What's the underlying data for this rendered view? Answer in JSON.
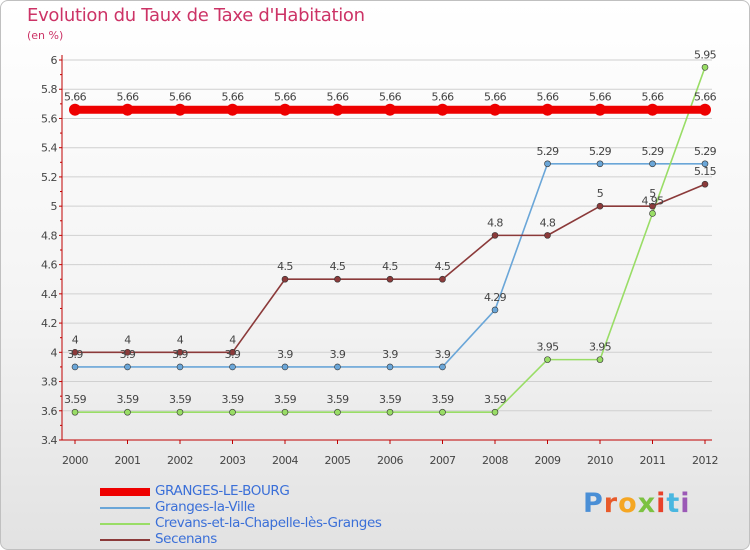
{
  "header": {
    "title": "Evolution du Taux de Taxe d'Habitation",
    "unit": "(en %)"
  },
  "logo": {
    "text": "Proxiti",
    "letter_colors": [
      "#4a8fd6",
      "#e85a2a",
      "#f5a623",
      "#7cc242",
      "#e8412a",
      "#4ab7e0",
      "#9b59b6"
    ]
  },
  "chart_data": {
    "type": "line",
    "title": "Evolution du Taux de Taxe d'Habitation",
    "ylabel": "(en %)",
    "xlabel": "",
    "x": [
      "2000",
      "2001",
      "2002",
      "2003",
      "2004",
      "2005",
      "2006",
      "2007",
      "2008",
      "2009",
      "2010",
      "2011",
      "2012"
    ],
    "ylim": [
      3.4,
      6
    ],
    "yticks": [
      "3.4",
      "3.6",
      "3.8",
      "4",
      "4.2",
      "4.4",
      "4.6",
      "4.8",
      "5",
      "5.2",
      "5.4",
      "5.6",
      "5.8",
      "6"
    ],
    "grid": "horizontal",
    "legend_position": "bottom-left",
    "series": [
      {
        "name": "GRANGES-LE-BOURG",
        "color": "#ee0000",
        "values": [
          5.66,
          5.66,
          5.66,
          5.66,
          5.66,
          5.66,
          5.66,
          5.66,
          5.66,
          5.66,
          5.66,
          5.66,
          5.66
        ],
        "labels": [
          "5.66",
          "5.66",
          "5.66",
          "5.66",
          "5.66",
          "5.66",
          "5.66",
          "5.66",
          "5.66",
          "5.66",
          "5.66",
          "5.66",
          "5.66"
        ]
      },
      {
        "name": "Granges-la-Ville",
        "color": "#6aa6d8",
        "values": [
          3.9,
          3.9,
          3.9,
          3.9,
          3.9,
          3.9,
          3.9,
          3.9,
          4.29,
          5.29,
          5.29,
          5.29,
          5.29
        ],
        "labels": [
          "3.9",
          "3.9",
          "3.9",
          "3.9",
          "3.9",
          "3.9",
          "3.9",
          "3.9",
          "4.29",
          "5.29",
          "5.29",
          "5.29",
          "5.29"
        ]
      },
      {
        "name": "Crevans-et-la-Chapelle-lès-Granges",
        "color": "#99dd66",
        "values": [
          3.59,
          3.59,
          3.59,
          3.59,
          3.59,
          3.59,
          3.59,
          3.59,
          3.59,
          3.95,
          3.95,
          4.95,
          5.95
        ],
        "labels": [
          "3.59",
          "3.59",
          "3.59",
          "3.59",
          "3.59",
          "3.59",
          "3.59",
          "3.59",
          "3.59",
          "3.95",
          "3.95",
          "4.95",
          "5.95"
        ]
      },
      {
        "name": "Secenans",
        "color": "#8b3a3a",
        "values": [
          4,
          4,
          4,
          4,
          4.5,
          4.5,
          4.5,
          4.5,
          4.8,
          4.8,
          5,
          5,
          5.15
        ],
        "labels": [
          "4",
          "4",
          "4",
          "4",
          "4.5",
          "4.5",
          "4.5",
          "4.5",
          "4.8",
          "4.8",
          "5",
          "5",
          "5.15"
        ]
      }
    ]
  }
}
